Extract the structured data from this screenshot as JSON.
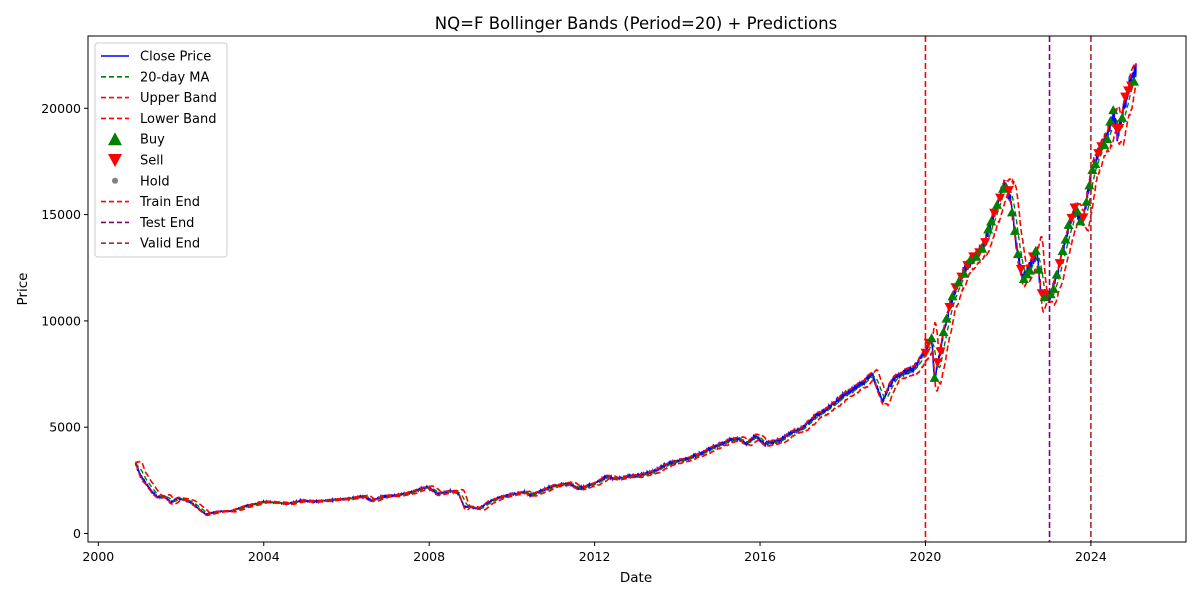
{
  "chart_data": {
    "type": "line",
    "title": "NQ=F Bollinger Bands (Period=20) + Predictions",
    "xlabel": "Date",
    "ylabel": "Price",
    "xlim": [
      1999.75,
      2026.3
    ],
    "ylim": [
      -400,
      23400
    ],
    "x_ticks": [
      2000,
      2004,
      2008,
      2012,
      2016,
      2020,
      2024
    ],
    "x_tick_labels": [
      "2000",
      "2004",
      "2008",
      "2012",
      "2016",
      "2020",
      "2024"
    ],
    "y_ticks": [
      0,
      5000,
      10000,
      15000,
      20000
    ],
    "y_tick_labels": [
      "0",
      "5000",
      "10000",
      "15000",
      "20000"
    ],
    "grid": false,
    "legend_position": "upper left",
    "colors": {
      "close": "#0000ff",
      "ma": "#008000",
      "bands": "#ff0000",
      "buy": "#008000",
      "sell": "#ff0000",
      "hold": "#808080",
      "train_end": "#ff0000",
      "test_end": "#800080",
      "valid_end": "#a52a2a"
    },
    "legend": [
      {
        "label": "Close Price",
        "kind": "line",
        "color": "#0000ff",
        "dashed": false
      },
      {
        "label": "20-day MA",
        "kind": "line",
        "color": "#008000",
        "dashed": true
      },
      {
        "label": "Upper Band",
        "kind": "line",
        "color": "#ff0000",
        "dashed": true
      },
      {
        "label": "Lower Band",
        "kind": "line",
        "color": "#ff0000",
        "dashed": true
      },
      {
        "label": "Buy",
        "kind": "triangle-up",
        "color": "#008000",
        "dashed": false
      },
      {
        "label": "Sell",
        "kind": "triangle-down",
        "color": "#ff0000",
        "dashed": false
      },
      {
        "label": "Hold",
        "kind": "dot",
        "color": "#808080",
        "dashed": false
      },
      {
        "label": "Train End",
        "kind": "line",
        "color": "#ff0000",
        "dashed": true
      },
      {
        "label": "Test End",
        "kind": "line",
        "color": "#800080",
        "dashed": true
      },
      {
        "label": "Valid End",
        "kind": "line",
        "color": "#a52a2a",
        "dashed": true
      }
    ],
    "vlines": [
      {
        "label": "Train End",
        "x": 2020.0,
        "color": "#ff0000"
      },
      {
        "label": "Test End",
        "x": 2023.0,
        "color": "#800080"
      },
      {
        "label": "Valid End",
        "x": 2024.0,
        "color": "#a52a2a"
      }
    ],
    "close_price": [
      [
        2000.9,
        3300
      ],
      [
        2001.0,
        2800
      ],
      [
        2001.15,
        2350
      ],
      [
        2001.3,
        1950
      ],
      [
        2001.45,
        1700
      ],
      [
        2001.6,
        1750
      ],
      [
        2001.75,
        1450
      ],
      [
        2001.9,
        1650
      ],
      [
        2002.05,
        1600
      ],
      [
        2002.2,
        1500
      ],
      [
        2002.4,
        1200
      ],
      [
        2002.6,
        900
      ],
      [
        2002.8,
        1000
      ],
      [
        2003.0,
        1050
      ],
      [
        2003.2,
        1050
      ],
      [
        2003.5,
        1250
      ],
      [
        2003.8,
        1400
      ],
      [
        2004.0,
        1500
      ],
      [
        2004.3,
        1450
      ],
      [
        2004.6,
        1400
      ],
      [
        2004.9,
        1550
      ],
      [
        2005.2,
        1500
      ],
      [
        2005.5,
        1550
      ],
      [
        2005.8,
        1600
      ],
      [
        2006.1,
        1650
      ],
      [
        2006.4,
        1750
      ],
      [
        2006.6,
        1550
      ],
      [
        2006.9,
        1750
      ],
      [
        2007.2,
        1800
      ],
      [
        2007.5,
        1900
      ],
      [
        2007.8,
        2100
      ],
      [
        2007.95,
        2200
      ],
      [
        2008.2,
        1850
      ],
      [
        2008.5,
        2000
      ],
      [
        2008.7,
        1900
      ],
      [
        2008.85,
        1250
      ],
      [
        2009.0,
        1250
      ],
      [
        2009.2,
        1150
      ],
      [
        2009.4,
        1450
      ],
      [
        2009.7,
        1700
      ],
      [
        2010.0,
        1850
      ],
      [
        2010.3,
        1950
      ],
      [
        2010.45,
        1800
      ],
      [
        2010.7,
        2000
      ],
      [
        2011.0,
        2250
      ],
      [
        2011.4,
        2350
      ],
      [
        2011.6,
        2100
      ],
      [
        2012.0,
        2350
      ],
      [
        2012.3,
        2700
      ],
      [
        2012.5,
        2550
      ],
      [
        2012.8,
        2700
      ],
      [
        2013.0,
        2700
      ],
      [
        2013.4,
        2900
      ],
      [
        2013.8,
        3300
      ],
      [
        2014.2,
        3500
      ],
      [
        2014.5,
        3700
      ],
      [
        2014.8,
        4000
      ],
      [
        2015.2,
        4350
      ],
      [
        2015.5,
        4450
      ],
      [
        2015.65,
        4200
      ],
      [
        2015.9,
        4600
      ],
      [
        2016.1,
        4200
      ],
      [
        2016.5,
        4400
      ],
      [
        2016.8,
        4800
      ],
      [
        2017.0,
        4950
      ],
      [
        2017.4,
        5600
      ],
      [
        2017.8,
        6100
      ],
      [
        2018.0,
        6500
      ],
      [
        2018.1,
        6600
      ],
      [
        2018.5,
        7100
      ],
      [
        2018.7,
        7500
      ],
      [
        2018.85,
        6800
      ],
      [
        2018.95,
        6200
      ],
      [
        2019.2,
        7200
      ],
      [
        2019.5,
        7600
      ],
      [
        2019.7,
        7700
      ],
      [
        2020.0,
        8600
      ],
      [
        2020.15,
        9200
      ],
      [
        2020.22,
        7200
      ],
      [
        2020.4,
        9000
      ],
      [
        2020.6,
        10800
      ],
      [
        2020.9,
        12300
      ],
      [
        2021.2,
        13000
      ],
      [
        2021.4,
        13500
      ],
      [
        2021.7,
        15300
      ],
      [
        2021.9,
        16400
      ],
      [
        2022.05,
        15800
      ],
      [
        2022.2,
        13600
      ],
      [
        2022.35,
        12000
      ],
      [
        2022.5,
        12500
      ],
      [
        2022.7,
        13200
      ],
      [
        2022.8,
        11200
      ],
      [
        2023.0,
        11000
      ],
      [
        2023.2,
        12300
      ],
      [
        2023.45,
        14300
      ],
      [
        2023.6,
        15300
      ],
      [
        2023.8,
        14700
      ],
      [
        2024.0,
        16800
      ],
      [
        2024.2,
        18000
      ],
      [
        2024.4,
        18800
      ],
      [
        2024.55,
        19800
      ],
      [
        2024.65,
        18600
      ],
      [
        2024.8,
        20000
      ],
      [
        2024.95,
        21300
      ],
      [
        2025.1,
        21800
      ]
    ]
  }
}
